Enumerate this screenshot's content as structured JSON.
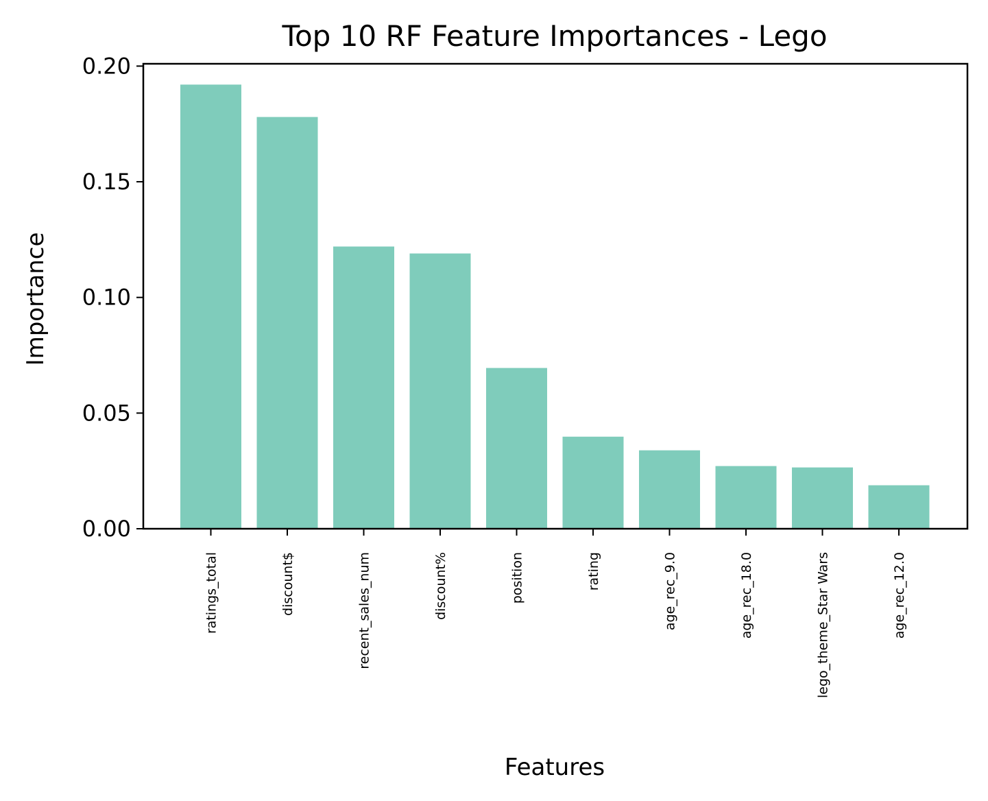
{
  "chart_data": {
    "type": "bar",
    "title": "Top 10 RF Feature Importances - Lego",
    "xlabel": "Features",
    "ylabel": "Importance",
    "categories": [
      "ratings_total",
      "discount$",
      "recent_sales_num",
      "discount%",
      "position",
      "rating",
      "age_rec_9.0",
      "age_rec_18.0",
      "lego_theme_Star Wars",
      "age_rec_12.0"
    ],
    "values": [
      0.192,
      0.178,
      0.122,
      0.119,
      0.0695,
      0.0398,
      0.0339,
      0.0271,
      0.0265,
      0.0188
    ],
    "ylim": [
      0,
      0.201
    ],
    "yticks": [
      "0.00",
      "0.05",
      "0.10",
      "0.15",
      "0.20"
    ],
    "bar_color": "#7fccbb",
    "grid": false,
    "legend": "none"
  }
}
